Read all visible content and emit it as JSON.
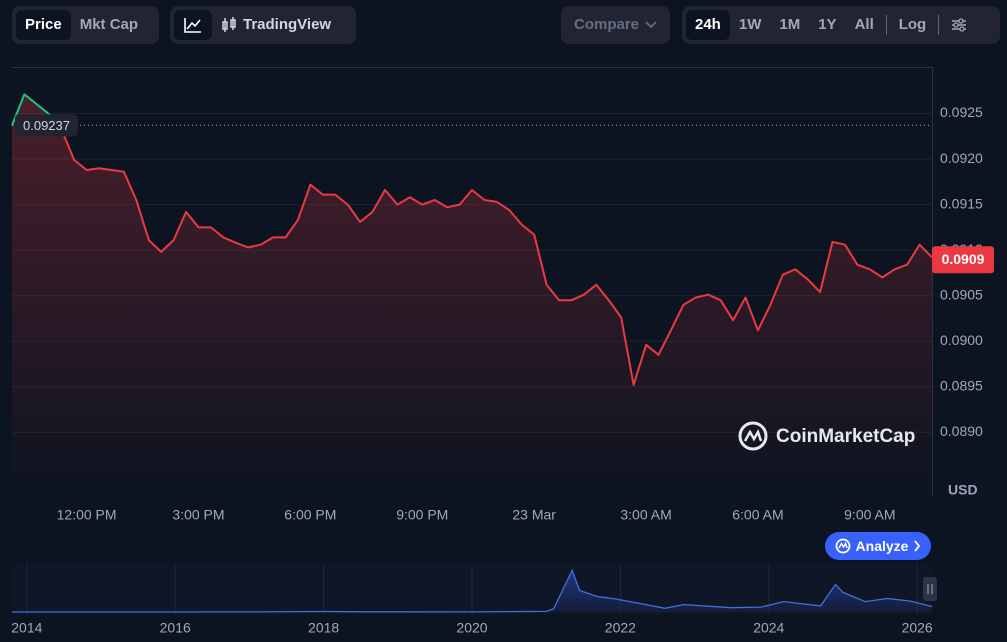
{
  "toolbar": {
    "price_tabs": [
      "Price",
      "Mkt Cap"
    ],
    "view_tabs": [
      "TradingView"
    ],
    "compare": "Compare",
    "ranges": [
      "24h",
      "1W",
      "1M",
      "1Y",
      "All"
    ],
    "log": "Log"
  },
  "watermark": "CoinMarketCap",
  "analyze_button": "Analyze",
  "chart_data": [
    {
      "type": "line",
      "categories": [
        null,
        null,
        null,
        null,
        null,
        null,
        "12:00 PM",
        null,
        null,
        null,
        null,
        null,
        null,
        null,
        null,
        "3:00 PM",
        null,
        null,
        null,
        null,
        null,
        null,
        null,
        null,
        "6:00 PM",
        null,
        null,
        null,
        null,
        null,
        null,
        null,
        null,
        "9:00 PM",
        null,
        null,
        null,
        null,
        null,
        null,
        null,
        null,
        "23 Mar",
        null,
        null,
        null,
        null,
        null,
        null,
        null,
        null,
        "3:00 AM",
        null,
        null,
        null,
        null,
        null,
        null,
        null,
        null,
        "6:00 AM",
        null,
        null,
        null,
        null,
        null,
        null,
        null,
        null,
        "9:00 AM",
        null,
        null,
        null,
        null,
        null
      ],
      "values": [
        0.09237,
        0.09271,
        0.0926,
        0.09249,
        0.09232,
        0.09199,
        0.09188,
        0.0919,
        0.09188,
        0.09186,
        0.09155,
        0.09111,
        0.09098,
        0.09111,
        0.09142,
        0.09125,
        0.09125,
        0.09114,
        0.09108,
        0.09103,
        0.09106,
        0.09114,
        0.09114,
        0.09133,
        0.09172,
        0.09161,
        0.09161,
        0.0915,
        0.09131,
        0.09142,
        0.09166,
        0.0915,
        0.09158,
        0.0915,
        0.09155,
        0.09147,
        0.0915,
        0.09166,
        0.09155,
        0.09153,
        0.09144,
        0.09128,
        0.09117,
        0.09062,
        0.09045,
        0.09045,
        0.09051,
        0.09062,
        0.09045,
        0.09026,
        0.08952,
        0.08996,
        0.08985,
        0.09012,
        0.0904,
        0.09048,
        0.09051,
        0.09045,
        0.09023,
        0.09048,
        0.09012,
        0.0904,
        0.09073,
        0.09079,
        0.09068,
        0.09054,
        0.09109,
        0.09106,
        0.09084,
        0.09079,
        0.0907,
        0.09079,
        0.09084,
        0.09106,
        0.09092
      ],
      "color_up": "#16c784",
      "color_down": "#ea3943",
      "reference": 0.09237,
      "current_value": 0.0909,
      "ylim": [
        0.0883,
        0.093
      ],
      "yticks": [
        {
          "value": 0.089,
          "label": "0.0890"
        },
        0.0895,
        {
          "value": 0.09,
          "label": "0.0900"
        },
        0.0905,
        {
          "value": 0.091,
          "label": "0.0910"
        },
        0.0915,
        {
          "value": 0.092,
          "label": "0.0920"
        },
        0.0925
      ],
      "y_unit": "USD",
      "grid": true
    },
    {
      "type": "area",
      "x": [
        2013.8,
        2015,
        2017,
        2018,
        2018.5,
        2020,
        2021.0,
        2021.1,
        2021.35,
        2021.45,
        2021.7,
        2021.9,
        2022.3,
        2022.6,
        2022.85,
        2023.5,
        2023.9,
        2024.2,
        2024.4,
        2024.7,
        2024.9,
        2025.0,
        2025.3,
        2025.6,
        2025.9,
        2026.2
      ],
      "values": [
        0.0003,
        0.0002,
        0.001,
        0.008,
        0.003,
        0.002,
        0.01,
        0.05,
        0.68,
        0.35,
        0.25,
        0.22,
        0.13,
        0.06,
        0.12,
        0.07,
        0.08,
        0.17,
        0.14,
        0.1,
        0.45,
        0.32,
        0.17,
        0.22,
        0.18,
        0.09
      ],
      "color": "#4a6bd9",
      "xlim": [
        2013.8,
        2026.2
      ],
      "ylim": [
        0,
        0.75
      ],
      "xticks": [
        2014,
        2016,
        2018,
        2020,
        2022,
        2024,
        2026
      ]
    }
  ]
}
